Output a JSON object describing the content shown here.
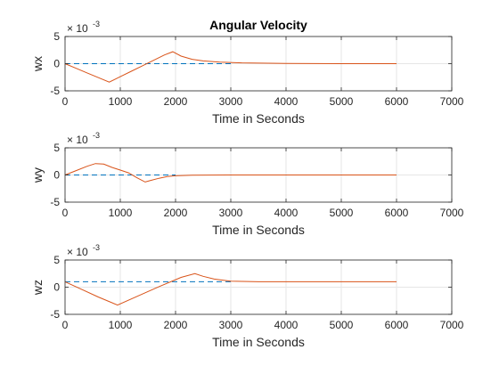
{
  "chart_data": [
    {
      "type": "line",
      "title": "Angular Velocity",
      "xlabel": "Time in Seconds",
      "ylabel": "wx",
      "exponent_base": "× 10",
      "exponent_power": "-3",
      "xlim": [
        0,
        7000
      ],
      "ylim": [
        -5,
        5
      ],
      "xticks": [
        "0",
        "1000",
        "2000",
        "3000",
        "4000",
        "5000",
        "6000",
        "7000"
      ],
      "yticks": [
        "5",
        "0",
        "-5"
      ],
      "grid": true,
      "series": [
        {
          "color": "#0072BD",
          "style": "dashed",
          "x": [
            0,
            3000
          ],
          "y": [
            0,
            0
          ]
        },
        {
          "color": "#D95319",
          "style": "solid",
          "x": [
            0,
            200,
            400,
            600,
            800,
            1000,
            1200,
            1400,
            1600,
            1800,
            1950,
            2100,
            2300,
            2500,
            2800,
            3200,
            4000,
            5000,
            6000
          ],
          "y": [
            0,
            -0.85,
            -1.7,
            -2.55,
            -3.4,
            -2.4,
            -1.4,
            -0.4,
            0.6,
            1.6,
            2.2,
            1.4,
            0.8,
            0.5,
            0.3,
            0.15,
            0.05,
            0.0,
            0.0
          ]
        }
      ]
    },
    {
      "type": "line",
      "title": "",
      "xlabel": "Time in Seconds",
      "ylabel": "wy",
      "exponent_base": "× 10",
      "exponent_power": "-3",
      "xlim": [
        0,
        7000
      ],
      "ylim": [
        -5,
        5
      ],
      "xticks": [
        "0",
        "1000",
        "2000",
        "3000",
        "4000",
        "5000",
        "6000",
        "7000"
      ],
      "yticks": [
        "5",
        "0",
        "-5"
      ],
      "grid": true,
      "series": [
        {
          "color": "#0072BD",
          "style": "dashed",
          "x": [
            0,
            2000
          ],
          "y": [
            0,
            0
          ]
        },
        {
          "color": "#D95319",
          "style": "solid",
          "x": [
            0,
            200,
            400,
            550,
            700,
            850,
            1000,
            1150,
            1300,
            1450,
            1550,
            1700,
            1850,
            2000,
            2300,
            3000,
            4000,
            5000,
            6000
          ],
          "y": [
            0,
            0.8,
            1.6,
            2.1,
            2.0,
            1.4,
            0.9,
            0.4,
            -0.5,
            -1.3,
            -1.0,
            -0.6,
            -0.3,
            -0.15,
            -0.05,
            0.0,
            0.0,
            0.0,
            0.0
          ]
        }
      ]
    },
    {
      "type": "line",
      "title": "",
      "xlabel": "Time in Seconds",
      "ylabel": "wz",
      "exponent_base": "× 10",
      "exponent_power": "-3",
      "xlim": [
        0,
        7000
      ],
      "ylim": [
        -5,
        5
      ],
      "xticks": [
        "0",
        "1000",
        "2000",
        "3000",
        "4000",
        "5000",
        "6000",
        "7000"
      ],
      "yticks": [
        "5",
        "0",
        "-5"
      ],
      "grid": true,
      "series": [
        {
          "color": "#0072BD",
          "style": "dashed",
          "x": [
            0,
            3000
          ],
          "y": [
            1,
            1
          ]
        },
        {
          "color": "#D95319",
          "style": "solid",
          "x": [
            0,
            300,
            600,
            950,
            1300,
            1700,
            2100,
            2350,
            2500,
            2700,
            3000,
            3500,
            4000,
            5000,
            6000
          ],
          "y": [
            1,
            -0.4,
            -1.8,
            -3.3,
            -1.7,
            0.1,
            1.8,
            2.5,
            2.0,
            1.5,
            1.1,
            1.0,
            1.0,
            1.0,
            1.0
          ]
        }
      ]
    }
  ]
}
